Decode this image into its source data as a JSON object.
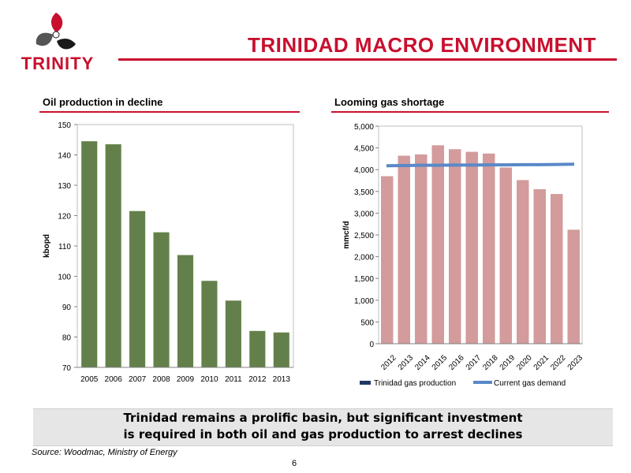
{
  "header": {
    "logo_text": "TRINITY",
    "title": "TRINIDAD MACRO ENVIRONMENT"
  },
  "colors": {
    "accent": "#c8102e",
    "oil_bar": "#63804a",
    "gas_bar": "#d39b9b",
    "demand_line": "#5a88c8",
    "production_legend": "#1f3864"
  },
  "chart_data": [
    {
      "type": "bar",
      "title": "Oil production in decline",
      "ylabel": "kbopd",
      "xlabel": "",
      "categories": [
        "2005",
        "2006",
        "2007",
        "2008",
        "2009",
        "2010",
        "2011",
        "2012",
        "2013"
      ],
      "values": [
        144.5,
        143.5,
        121.5,
        114.5,
        107,
        98.5,
        92,
        82,
        81.5
      ],
      "ylim": [
        70,
        150
      ],
      "yticks": [
        "70",
        "80",
        "90",
        "100",
        "110",
        "120",
        "130",
        "140",
        "150"
      ],
      "grid": false
    },
    {
      "type": "bar",
      "title": "Looming gas shortage",
      "ylabel": "mmcf/d",
      "xlabel": "",
      "categories": [
        "2012",
        "2013",
        "2014",
        "2015",
        "2016",
        "2017",
        "2018",
        "2019",
        "2020",
        "2021",
        "2022",
        "2023"
      ],
      "series": [
        {
          "name": "Trinidad gas production",
          "type": "bar",
          "values": [
            3850,
            4320,
            4350,
            4560,
            4470,
            4410,
            4370,
            4050,
            3760,
            3550,
            3440,
            2620
          ]
        },
        {
          "name": "Current gas demand",
          "type": "line",
          "values": [
            4090,
            4095,
            4100,
            4100,
            4105,
            4105,
            4110,
            4110,
            4115,
            4115,
            4120,
            4125
          ]
        }
      ],
      "ylim": [
        0,
        5000
      ],
      "yticks": [
        "0",
        "500",
        "1,000",
        "1,500",
        "2,000",
        "2,500",
        "3,000",
        "3,500",
        "4,000",
        "4,500",
        "5,000"
      ],
      "legend_position": "bottom",
      "grid": false
    }
  ],
  "banner": {
    "line1": "Trinidad remains a prolific basin, but significant investment",
    "line2": "is required in both oil and gas production to arrest declines"
  },
  "footer": {
    "source": "Source: Woodmac, Ministry of Energy",
    "page_number": "6"
  }
}
